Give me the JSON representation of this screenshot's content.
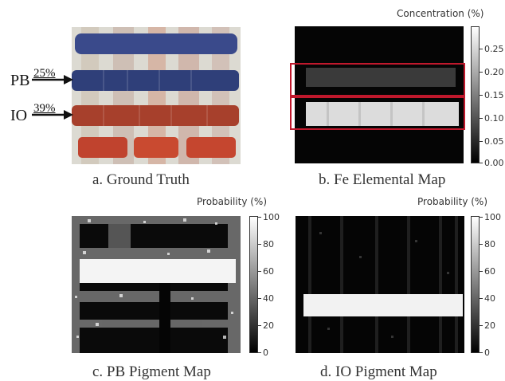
{
  "panel_a": {
    "caption": "a. Ground Truth",
    "pb_label": "PB",
    "pb_pct": "25%",
    "io_label": "IO",
    "io_pct": "39%"
  },
  "panel_b": {
    "caption": "b. Fe Elemental Map",
    "colorbar_title": "Concentration (%)",
    "ticks": [
      "0.25",
      "0.20",
      "0.15",
      "0.10",
      "0.05",
      "0.00"
    ]
  },
  "panel_c": {
    "caption": "c. PB Pigment Map",
    "colorbar_title": "Probability (%)",
    "ticks": [
      "100",
      "80",
      "60",
      "40",
      "20",
      "0"
    ]
  },
  "panel_d": {
    "caption": "d. IO Pigment Map",
    "colorbar_title": "Probability (%)",
    "ticks": [
      "100",
      "80",
      "60",
      "40",
      "20",
      "0"
    ]
  },
  "colors": {
    "blue_stripe": "#2f3f79",
    "red_stripe": "#a7402c",
    "highlight_box": "#c0182c",
    "background_map": "#050505"
  }
}
